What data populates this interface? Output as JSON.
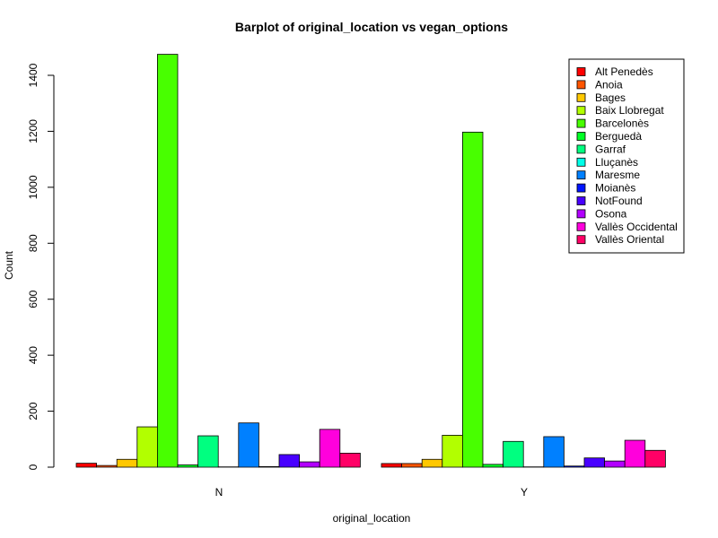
{
  "chart_data": {
    "type": "bar",
    "title": "Barplot of original_location vs vegan_options",
    "xlabel": "original_location",
    "ylabel": "Count",
    "categories": [
      "N",
      "Y"
    ],
    "ylim": [
      0,
      1480
    ],
    "yticks": [
      0,
      200,
      400,
      600,
      800,
      1000,
      1200,
      1400
    ],
    "legend_position": "top-right",
    "series": [
      {
        "name": "Alt Penedès",
        "color": "#FF0000",
        "values": [
          14,
          13
        ]
      },
      {
        "name": "Anoia",
        "color": "#FF5500",
        "values": [
          6,
          13
        ]
      },
      {
        "name": "Bages",
        "color": "#FFC800",
        "values": [
          28,
          28
        ]
      },
      {
        "name": "Baix Llobregat",
        "color": "#B2FF00",
        "values": [
          144,
          114
        ]
      },
      {
        "name": "Barcelonès",
        "color": "#48FF00",
        "values": [
          1475,
          1197
        ]
      },
      {
        "name": "Berguedà",
        "color": "#00FF24",
        "values": [
          8,
          10
        ]
      },
      {
        "name": "Garraf",
        "color": "#00FF80",
        "values": [
          112,
          92
        ]
      },
      {
        "name": "Lluçanès",
        "color": "#00FFE8",
        "values": [
          1,
          1
        ]
      },
      {
        "name": "Maresme",
        "color": "#0080FF",
        "values": [
          158,
          109
        ]
      },
      {
        "name": "Moianès",
        "color": "#0014FF",
        "values": [
          2,
          4
        ]
      },
      {
        "name": "NotFound",
        "color": "#4800FF",
        "values": [
          45,
          33
        ]
      },
      {
        "name": "Osona",
        "color": "#B200FF",
        "values": [
          19,
          22
        ]
      },
      {
        "name": "Vallès Occidental",
        "color": "#FF00DC",
        "values": [
          135,
          96
        ]
      },
      {
        "name": "Vallès Oriental",
        "color": "#FF0066",
        "values": [
          50,
          60
        ]
      }
    ]
  }
}
